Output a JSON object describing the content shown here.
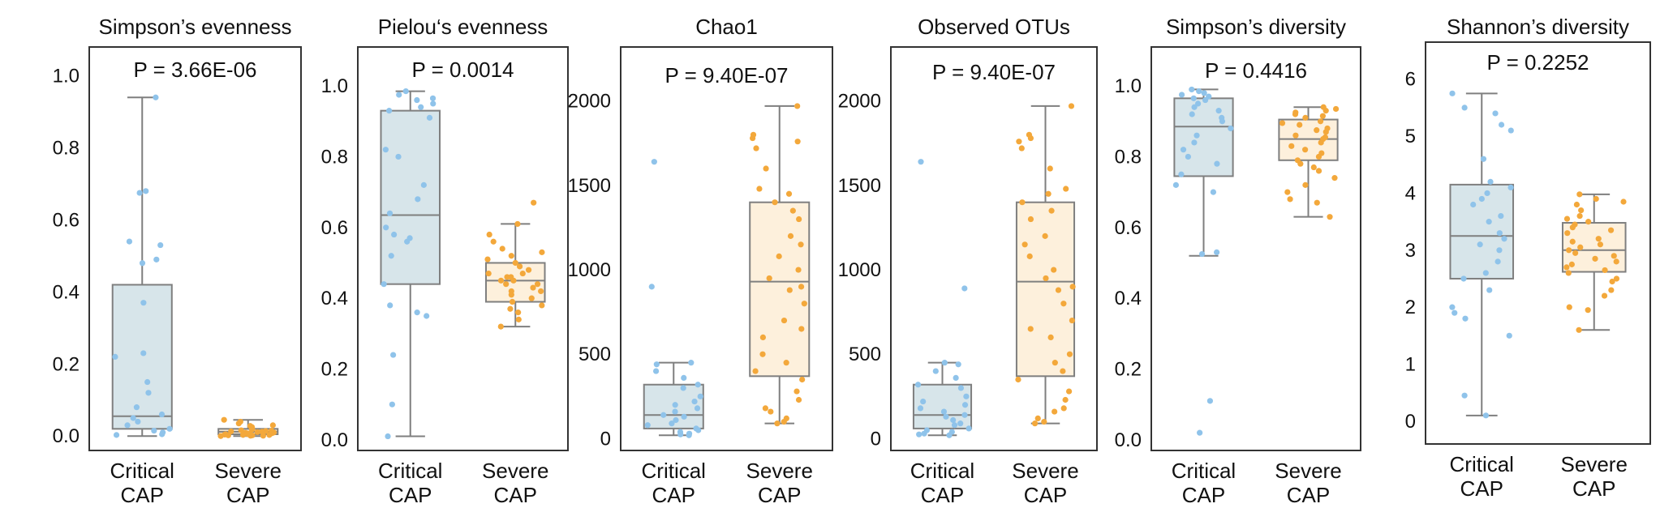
{
  "chart_data": [
    {
      "type": "box",
      "title": "Simpson’s evenness",
      "p_value": "P = 3.66E-06",
      "ylim": [
        -0.04,
        1.08
      ],
      "yticks": [
        0.0,
        0.2,
        0.4,
        0.6,
        0.8,
        1.0
      ],
      "ytick_labels": [
        "0.0",
        "0.2",
        "0.4",
        "0.6",
        "0.8",
        "1.0"
      ],
      "groups": [
        {
          "name": "Critical CAP",
          "min": 0.0,
          "q1": 0.02,
          "median": 0.055,
          "q3": 0.42,
          "max": 0.94,
          "points": [
            0.94,
            0.68,
            0.675,
            0.54,
            0.53,
            0.49,
            0.48,
            0.37,
            0.23,
            0.22,
            0.15,
            0.12,
            0.08,
            0.06,
            0.05,
            0.04,
            0.03,
            0.02,
            0.015,
            0.01,
            0.005,
            0.003
          ]
        },
        {
          "name": "Severe CAP",
          "min": 0.0,
          "q1": 0.005,
          "median": 0.012,
          "q3": 0.02,
          "max": 0.045,
          "points": [
            0.045,
            0.04,
            0.035,
            0.03,
            0.028,
            0.025,
            0.022,
            0.02,
            0.018,
            0.016,
            0.015,
            0.014,
            0.013,
            0.012,
            0.011,
            0.01,
            0.009,
            0.008,
            0.007,
            0.006,
            0.005,
            0.005,
            0.004,
            0.003,
            0.003,
            0.002,
            0.002,
            0.001,
            0.001,
            0.0
          ]
        }
      ]
    },
    {
      "type": "box",
      "title": "Pielou‘s evenness",
      "p_value": "P = 0.0014",
      "ylim": [
        -0.03,
        1.11
      ],
      "yticks": [
        0.0,
        0.2,
        0.4,
        0.6,
        0.8,
        1.0
      ],
      "ytick_labels": [
        "0.0",
        "0.2",
        "0.4",
        "0.6",
        "0.8",
        "1.0"
      ],
      "groups": [
        {
          "name": "Critical CAP",
          "min": 0.01,
          "q1": 0.44,
          "median": 0.635,
          "q3": 0.93,
          "max": 0.985,
          "points": [
            0.985,
            0.975,
            0.965,
            0.96,
            0.95,
            0.94,
            0.93,
            0.91,
            0.82,
            0.8,
            0.72,
            0.68,
            0.64,
            0.6,
            0.58,
            0.57,
            0.56,
            0.52,
            0.44,
            0.38,
            0.36,
            0.35,
            0.24,
            0.1,
            0.01
          ]
        },
        {
          "name": "Severe CAP",
          "min": 0.32,
          "q1": 0.39,
          "median": 0.45,
          "q3": 0.5,
          "max": 0.61,
          "points": [
            0.67,
            0.61,
            0.58,
            0.56,
            0.54,
            0.53,
            0.52,
            0.51,
            0.5,
            0.49,
            0.48,
            0.47,
            0.47,
            0.46,
            0.46,
            0.45,
            0.45,
            0.44,
            0.44,
            0.43,
            0.42,
            0.42,
            0.41,
            0.4,
            0.39,
            0.38,
            0.37,
            0.36,
            0.34,
            0.32
          ]
        }
      ]
    },
    {
      "type": "box",
      "title": "Chao1",
      "p_value": "P = 9.40E-07",
      "ylim": [
        -70,
        2320
      ],
      "yticks": [
        0,
        500,
        1000,
        1500,
        2000
      ],
      "ytick_labels": [
        "0",
        "500",
        "1000",
        "1500",
        "2000"
      ],
      "groups": [
        {
          "name": "Critical CAP",
          "min": 20,
          "q1": 60,
          "median": 140,
          "q3": 320,
          "max": 450,
          "points": [
            1640,
            900,
            450,
            440,
            400,
            360,
            320,
            300,
            250,
            220,
            200,
            180,
            160,
            140,
            130,
            110,
            90,
            80,
            60,
            50,
            40,
            30,
            25,
            20
          ]
        },
        {
          "name": "Severe CAP",
          "min": 90,
          "q1": 370,
          "median": 930,
          "q3": 1400,
          "max": 1970,
          "points": [
            1970,
            1800,
            1780,
            1760,
            1720,
            1600,
            1480,
            1450,
            1400,
            1350,
            1300,
            1200,
            1150,
            1080,
            1000,
            950,
            900,
            880,
            800,
            700,
            650,
            600,
            500,
            450,
            400,
            350,
            280,
            230,
            180,
            160,
            120,
            100,
            90
          ]
        }
      ]
    },
    {
      "type": "box",
      "title": "Observed OTUs",
      "p_value": "P = 9.40E-07",
      "ylim": [
        -70,
        2320
      ],
      "yticks": [
        0,
        500,
        1000,
        1500,
        2000
      ],
      "ytick_labels": [
        "0",
        "500",
        "1000",
        "1500",
        "2000"
      ],
      "groups": [
        {
          "name": "Critical CAP",
          "min": 20,
          "q1": 60,
          "median": 140,
          "q3": 320,
          "max": 450,
          "points": [
            1640,
            890,
            450,
            440,
            400,
            360,
            320,
            300,
            250,
            220,
            200,
            180,
            160,
            140,
            130,
            110,
            90,
            80,
            60,
            50,
            40,
            30,
            25,
            20
          ]
        },
        {
          "name": "Severe CAP",
          "min": 90,
          "q1": 370,
          "median": 930,
          "q3": 1400,
          "max": 1970,
          "points": [
            1970,
            1800,
            1780,
            1760,
            1720,
            1600,
            1480,
            1450,
            1400,
            1350,
            1300,
            1200,
            1150,
            1080,
            1000,
            950,
            900,
            880,
            800,
            700,
            650,
            600,
            500,
            450,
            400,
            350,
            280,
            230,
            180,
            160,
            120,
            100,
            90
          ]
        }
      ]
    },
    {
      "type": "box",
      "title": "Simpson’s diversity",
      "p_value": "P = 0.4416",
      "ylim": [
        -0.03,
        1.11
      ],
      "yticks": [
        0.0,
        0.2,
        0.4,
        0.6,
        0.8,
        1.0
      ],
      "ytick_labels": [
        "0.0",
        "0.2",
        "0.4",
        "0.6",
        "0.8",
        "1.0"
      ],
      "groups": [
        {
          "name": "Critical CAP",
          "min": 0.52,
          "q1": 0.745,
          "median": 0.885,
          "q3": 0.965,
          "max": 0.99,
          "points": [
            0.99,
            0.985,
            0.98,
            0.975,
            0.97,
            0.965,
            0.96,
            0.95,
            0.94,
            0.93,
            0.92,
            0.91,
            0.9,
            0.88,
            0.86,
            0.84,
            0.82,
            0.8,
            0.78,
            0.75,
            0.72,
            0.7,
            0.53,
            0.525,
            0.11,
            0.02
          ]
        },
        {
          "name": "Severe CAP",
          "min": 0.63,
          "q1": 0.79,
          "median": 0.85,
          "q3": 0.905,
          "max": 0.94,
          "points": [
            0.94,
            0.935,
            0.93,
            0.925,
            0.92,
            0.915,
            0.91,
            0.9,
            0.895,
            0.89,
            0.88,
            0.875,
            0.87,
            0.86,
            0.855,
            0.85,
            0.84,
            0.83,
            0.82,
            0.81,
            0.8,
            0.79,
            0.78,
            0.77,
            0.76,
            0.74,
            0.72,
            0.7,
            0.68,
            0.67,
            0.63
          ]
        }
      ]
    },
    {
      "type": "box",
      "title": "Shannon’s diversity",
      "p_value": "P = 0.2252",
      "ylim": [
        -0.4,
        6.65
      ],
      "yticks": [
        0,
        1,
        2,
        3,
        4,
        5,
        6
      ],
      "ytick_labels": [
        "0",
        "1",
        "2",
        "3",
        "4",
        "5",
        "6"
      ],
      "groups": [
        {
          "name": "Critical CAP",
          "min": 0.1,
          "q1": 2.5,
          "median": 3.25,
          "q3": 4.15,
          "max": 5.75,
          "points": [
            5.75,
            5.5,
            5.4,
            5.2,
            5.1,
            4.6,
            4.2,
            4.1,
            4.0,
            3.9,
            3.8,
            3.6,
            3.5,
            3.3,
            3.2,
            3.1,
            3.0,
            2.8,
            2.6,
            2.5,
            2.3,
            2.0,
            1.9,
            1.8,
            1.5,
            0.45,
            0.1
          ]
        },
        {
          "name": "Severe CAP",
          "min": 1.6,
          "q1": 2.62,
          "median": 3.0,
          "q3": 3.48,
          "max": 3.98,
          "points": [
            3.98,
            3.9,
            3.85,
            3.8,
            3.7,
            3.6,
            3.55,
            3.5,
            3.45,
            3.4,
            3.35,
            3.3,
            3.2,
            3.15,
            3.1,
            3.05,
            3.0,
            2.95,
            2.9,
            2.85,
            2.8,
            2.75,
            2.7,
            2.65,
            2.6,
            2.5,
            2.45,
            2.3,
            2.2,
            2.0,
            1.95,
            1.6
          ]
        }
      ]
    }
  ],
  "x_labels": {
    "critical_line1": "Critical",
    "critical_line2": "CAP",
    "severe_line1": "Severe",
    "severe_line2": "CAP"
  },
  "colors": {
    "critical_box": "#d7e5ea",
    "critical_points": "#8fc3ea",
    "severe_box": "#fdf0dc",
    "severe_points": "#f3a83b",
    "box_line": "#7f7f7f",
    "frame": "#333333"
  }
}
